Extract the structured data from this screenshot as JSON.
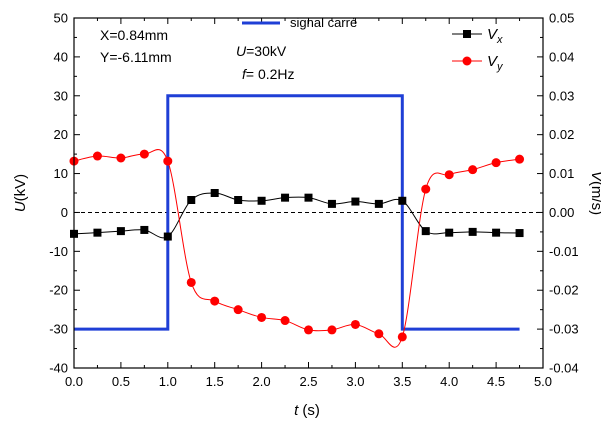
{
  "chart_data": {
    "type": "line",
    "xlabel_var": "t",
    "xlabel_unit": " (s)",
    "ylabel_left_var": "U",
    "ylabel_left_unit": "(kV)",
    "ylabel_right_var": "V",
    "ylabel_right_unit": "(m/s)",
    "xlim": [
      0,
      5
    ],
    "ylim_left": [
      -40,
      50
    ],
    "ylim_right": [
      -0.04,
      0.05
    ],
    "xticks": [
      "0.0",
      "0.5",
      "1.0",
      "1.5",
      "2.0",
      "2.5",
      "3.0",
      "3.5",
      "4.0",
      "4.5",
      "5.0"
    ],
    "yticks_left": [
      "-40",
      "-30",
      "-20",
      "-10",
      "0",
      "10",
      "20",
      "30",
      "40",
      "50"
    ],
    "yticks_right": [
      "-0.04",
      "-0.03",
      "-0.02",
      "-0.01",
      "0.00",
      "0.01",
      "0.02",
      "0.03",
      "0.04",
      "0.05"
    ],
    "zero_line": "dashed",
    "annotations": {
      "position": [
        "X=0.84mm",
        "Y=-6.11mm"
      ],
      "voltage_var": "U",
      "voltage_value": "=30kV",
      "frequency_var": "f",
      "frequency_value": "= 0.2Hz"
    },
    "series": [
      {
        "name": "signal carré",
        "axis": "left",
        "color": "#1f3fd6",
        "style": "step",
        "x": [
          0.0,
          1.0,
          1.0,
          3.5,
          3.5,
          4.75
        ],
        "y": [
          -30,
          -30,
          30,
          30,
          -30,
          -30
        ]
      },
      {
        "name": "Vx",
        "symbol": "V",
        "subscript": "x",
        "axis": "right",
        "color": "#000000",
        "marker": "square",
        "x": [
          0.0,
          0.25,
          0.5,
          0.75,
          1.0,
          1.25,
          1.5,
          1.75,
          2.0,
          2.25,
          2.5,
          2.75,
          3.0,
          3.25,
          3.5,
          3.75,
          4.0,
          4.25,
          4.5,
          4.75
        ],
        "y": [
          -0.0055,
          -0.0052,
          -0.0048,
          -0.0045,
          -0.0062,
          0.0032,
          0.005,
          0.0032,
          0.003,
          0.0038,
          0.0038,
          0.0022,
          0.0028,
          0.0022,
          0.003,
          -0.0048,
          -0.0052,
          -0.005,
          -0.0052,
          -0.0053
        ]
      },
      {
        "name": "Vy",
        "symbol": "V",
        "subscript": "y",
        "axis": "right",
        "color": "#ff0000",
        "marker": "circle",
        "x": [
          0.0,
          0.25,
          0.5,
          0.75,
          1.0,
          1.25,
          1.5,
          1.75,
          2.0,
          2.25,
          2.5,
          2.75,
          3.0,
          3.25,
          3.5,
          3.75,
          4.0,
          4.25,
          4.5,
          4.75
        ],
        "y": [
          0.0132,
          0.0145,
          0.014,
          0.015,
          0.0132,
          -0.018,
          -0.0228,
          -0.025,
          -0.027,
          -0.0278,
          -0.0302,
          -0.0302,
          -0.0288,
          -0.0312,
          -0.032,
          0.006,
          0.0097,
          0.011,
          0.0128,
          0.0137
        ]
      }
    ]
  }
}
